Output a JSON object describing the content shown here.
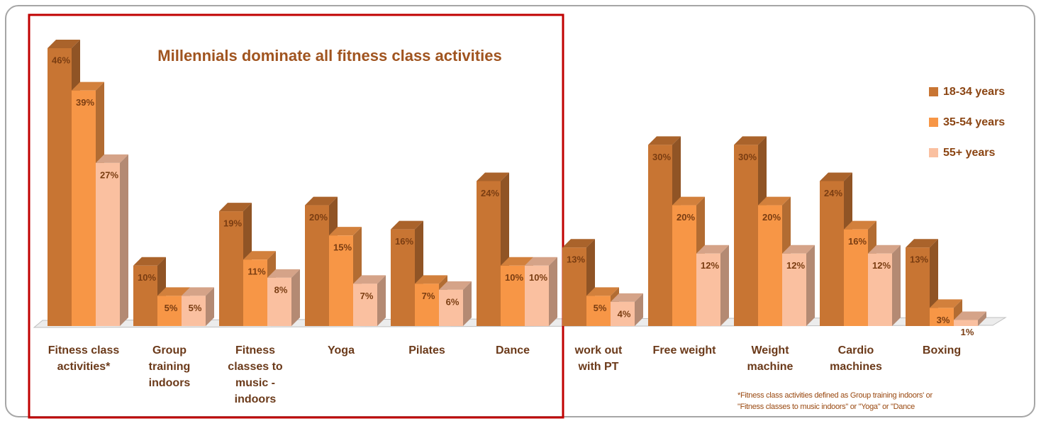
{
  "chart_data": {
    "type": "bar3d",
    "title": "Millennials dominate all fitness class activities",
    "categories": [
      "Fitness class\nactivities*",
      "Group\ntraining\nindoors",
      "Fitness\nclasses to\nmusic -\nindoors",
      "Yoga",
      "Pilates",
      "Dance",
      "work out\nwith PT",
      "Free weight",
      "Weight\nmachine",
      "Cardio\nmachines",
      "Boxing"
    ],
    "series": [
      {
        "name": "18-34 years",
        "color": "#c87533",
        "values": [
          46,
          10,
          19,
          20,
          16,
          24,
          13,
          30,
          30,
          24,
          13
        ],
        "value_labels": [
          "46%",
          "10%",
          "19%",
          "20%",
          "16%",
          "24%",
          "13%",
          "30%",
          "30%",
          "24%",
          "13%"
        ]
      },
      {
        "name": "35-54 years",
        "color": "#f79646",
        "values": [
          39,
          5,
          11,
          15,
          7,
          10,
          5,
          20,
          20,
          16,
          3
        ],
        "value_labels": [
          "39%",
          "5%",
          "11%",
          "15%",
          "7%",
          "10%",
          "5%",
          "20%",
          "20%",
          "16%",
          "3%"
        ]
      },
      {
        "name": "55+ years",
        "color": "#fac0a0",
        "values": [
          27,
          5,
          8,
          7,
          6,
          10,
          4,
          12,
          12,
          12,
          1
        ],
        "value_labels": [
          "27%",
          "5%",
          "8%",
          "7%",
          "6%",
          "10%",
          "4%",
          "12%",
          "12%",
          "12%",
          "1%"
        ]
      }
    ],
    "legend": "right",
    "footnote": "*Fitness  class activities defined as Group training indoors' or\n\"Fitness classes to music indoors\" or \"Yoga\" or \"Dance"
  }
}
